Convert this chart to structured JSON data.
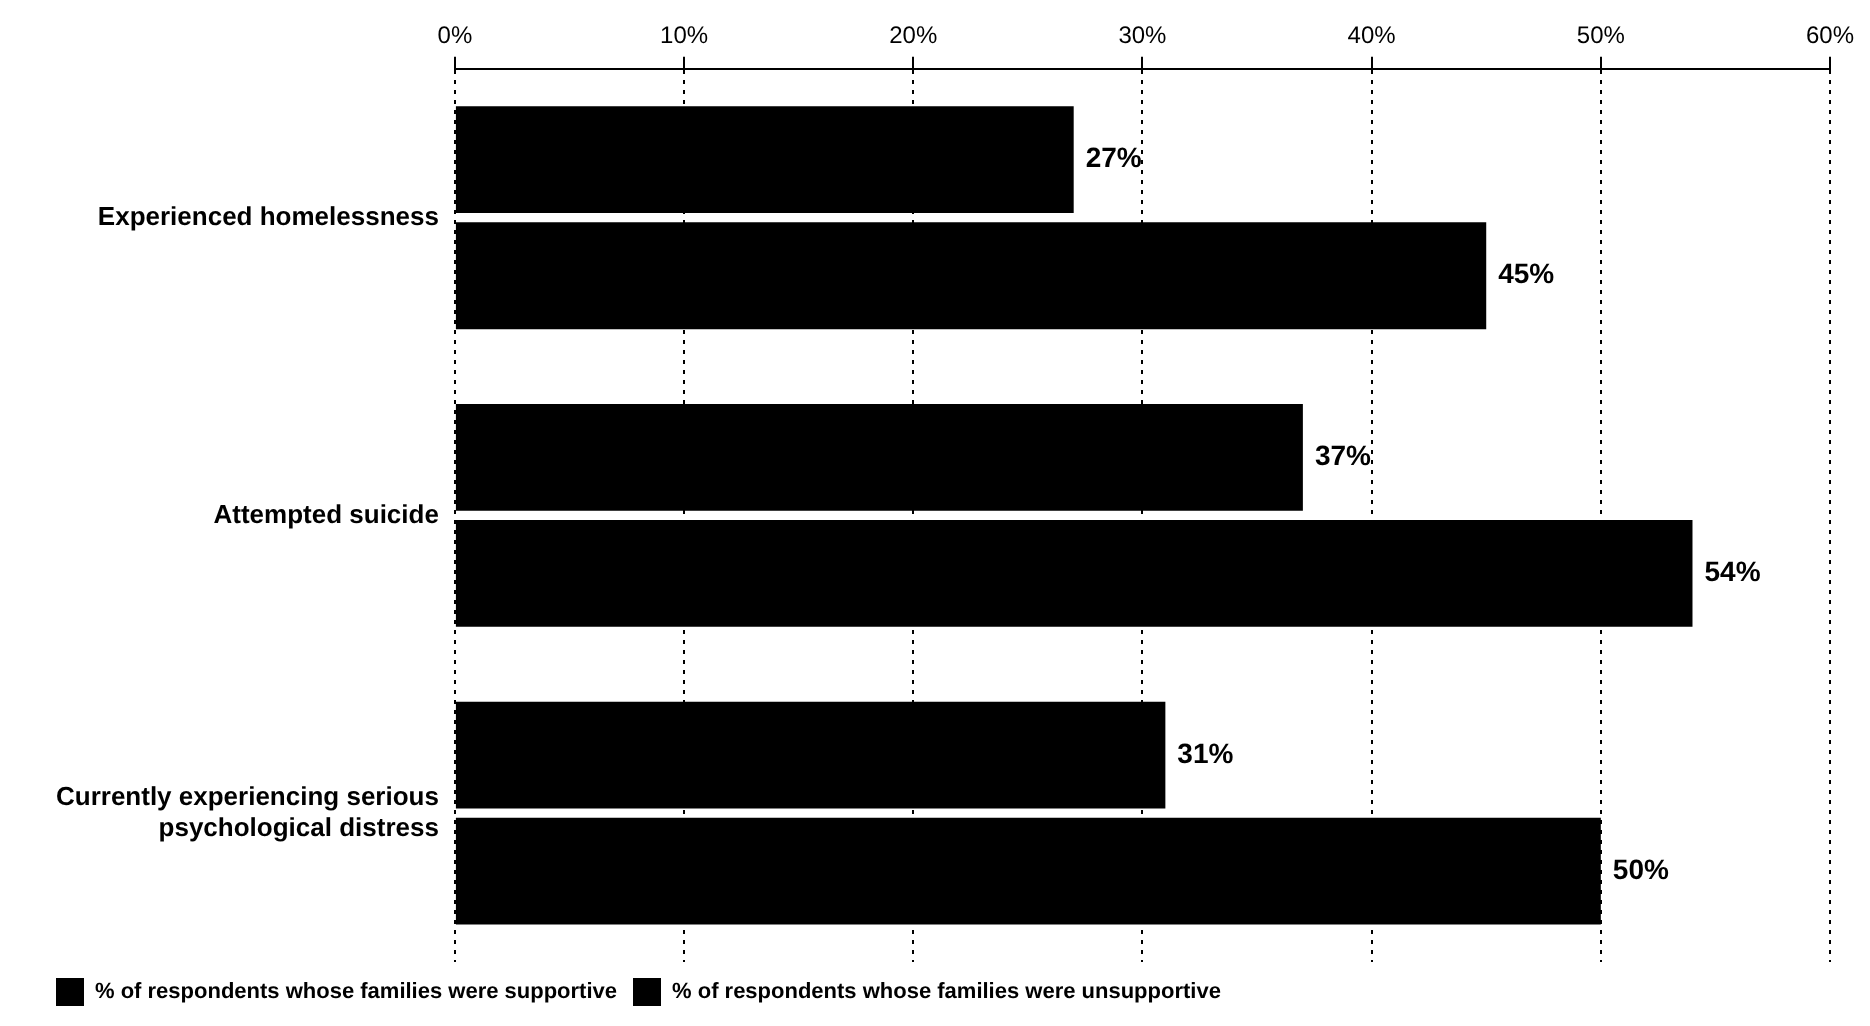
{
  "chart_data": {
    "type": "bar",
    "orientation": "horizontal",
    "categories": [
      "Experienced homelessness",
      "Attempted suicide",
      "Currently experiencing serious psychological distress"
    ],
    "series": [
      {
        "name": "% of respondents whose families were supportive",
        "color": "#000000",
        "values": [
          27,
          37,
          31
        ],
        "value_labels": [
          "27%",
          "37%",
          "31%"
        ]
      },
      {
        "name": "% of respondents whose families were unsupportive",
        "color": "#000000",
        "values": [
          45,
          54,
          50
        ],
        "value_labels": [
          "45%",
          "54%",
          "50%"
        ]
      }
    ],
    "xlim": [
      0,
      60
    ],
    "xticks": [
      {
        "value": 0,
        "label": "0%"
      },
      {
        "value": 10,
        "label": "10%"
      },
      {
        "value": 20,
        "label": "20%"
      },
      {
        "value": 30,
        "label": "30%"
      },
      {
        "value": 40,
        "label": "40%"
      },
      {
        "value": 50,
        "label": "50%"
      },
      {
        "value": 60,
        "label": "60%"
      }
    ],
    "grid": "x",
    "legend": "bottom left"
  }
}
